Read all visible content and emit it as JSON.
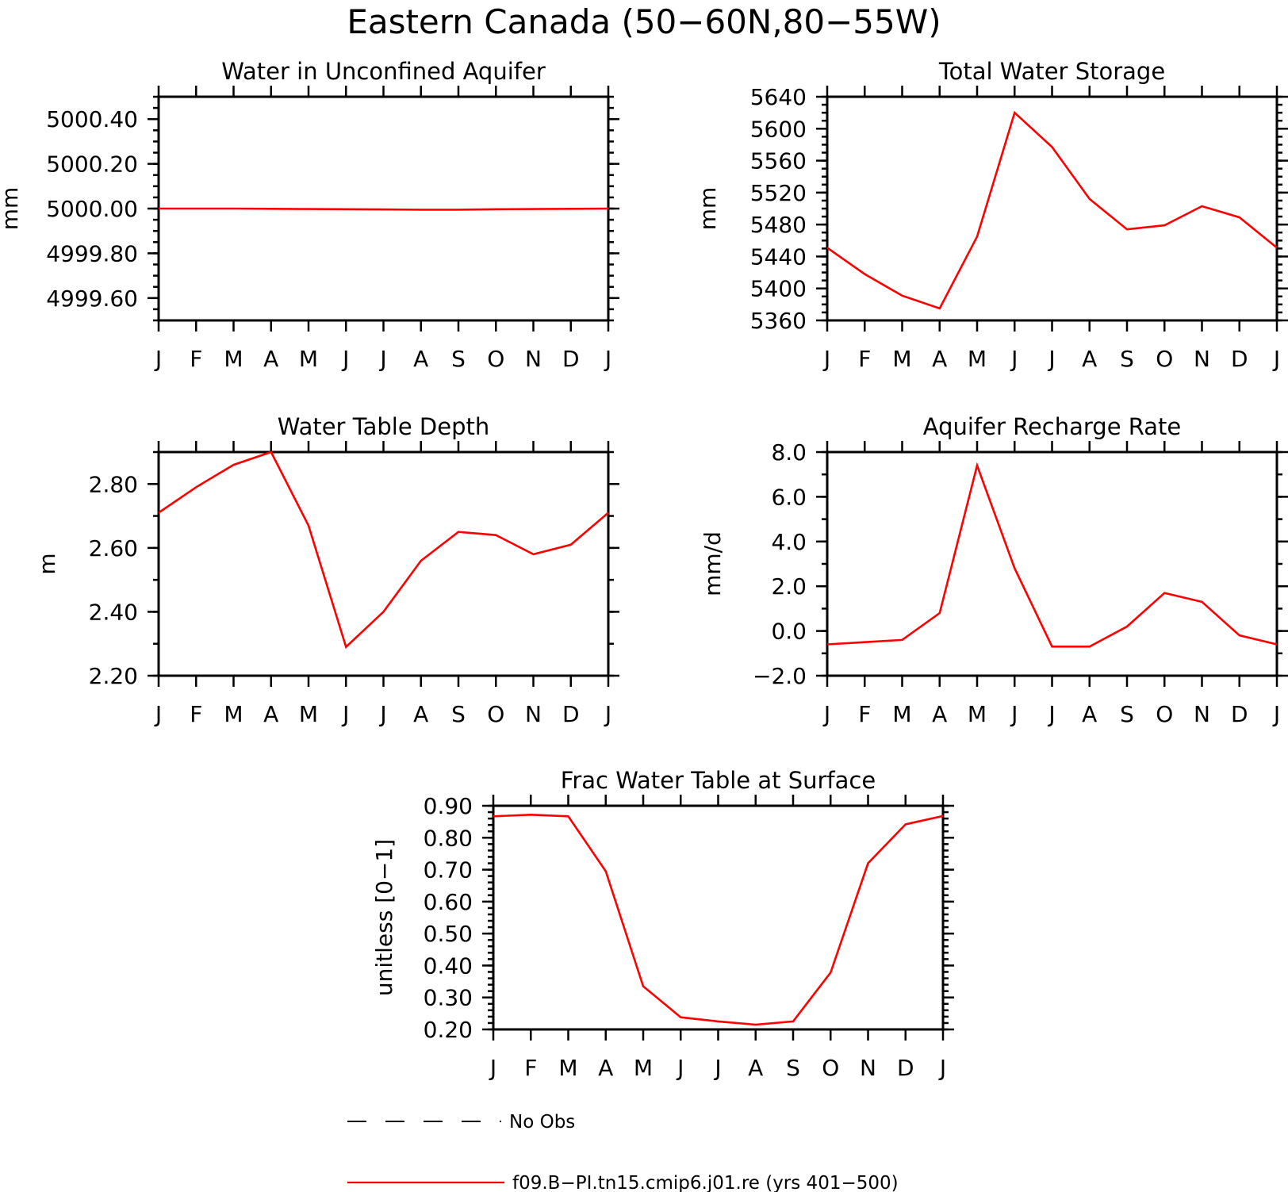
{
  "title": "Eastern Canada (50−60N,80−55W)",
  "months": [
    "J",
    "F",
    "M",
    "A",
    "M",
    "J",
    "J",
    "A",
    "S",
    "O",
    "N",
    "D",
    "J"
  ],
  "legend": {
    "entries": [
      {
        "label": "No Obs",
        "style": "dashed",
        "color": "#000000"
      },
      {
        "label": "f09.B−PI.tn15.cmip6.j01.re (yrs 401−500)",
        "style": "solid",
        "color": "#ff0000"
      }
    ]
  },
  "chart_data": [
    {
      "type": "line",
      "title": "Water in Unconfined Aquifer",
      "ylabel": "mm",
      "ylim": [
        4999.5,
        5000.5
      ],
      "yticks": [
        4999.6,
        4999.8,
        5000.0,
        5000.2,
        5000.4
      ],
      "ytick_labels": [
        "4999.60",
        "4999.80",
        "5000.00",
        "5000.20",
        "5000.40"
      ],
      "yminor_step": 0.05,
      "x": [
        "J",
        "F",
        "M",
        "A",
        "M",
        "J",
        "J",
        "A",
        "S",
        "O",
        "N",
        "D",
        "J"
      ],
      "series": [
        {
          "color": "#ff0000",
          "values": [
            5000.0,
            5000.0,
            5000.0,
            4999.999,
            4999.998,
            4999.997,
            4999.996,
            4999.995,
            4999.995,
            4999.997,
            4999.998,
            4999.999,
            5000.0
          ]
        }
      ]
    },
    {
      "type": "line",
      "title": "Total Water Storage",
      "ylabel": "mm",
      "ylim": [
        5360,
        5640
      ],
      "yticks": [
        5360,
        5400,
        5440,
        5480,
        5520,
        5560,
        5600,
        5640
      ],
      "ytick_labels": [
        "5360",
        "5400",
        "5440",
        "5480",
        "5520",
        "5560",
        "5600",
        "5640"
      ],
      "yminor_step": 10,
      "x": [
        "J",
        "F",
        "M",
        "A",
        "M",
        "J",
        "J",
        "A",
        "S",
        "O",
        "N",
        "D",
        "J"
      ],
      "series": [
        {
          "color": "#ff0000",
          "values": [
            5451,
            5418,
            5391,
            5375,
            5465,
            5620,
            5577,
            5512,
            5474,
            5479,
            5503,
            5489,
            5451
          ]
        }
      ]
    },
    {
      "type": "line",
      "title": "Water Table Depth",
      "ylabel": "m",
      "ylim": [
        2.2,
        2.9
      ],
      "yticks": [
        2.2,
        2.4,
        2.6,
        2.8
      ],
      "ytick_labels": [
        "2.20",
        "2.40",
        "2.60",
        "2.80"
      ],
      "yminor_step": 0.1,
      "x": [
        "J",
        "F",
        "M",
        "A",
        "M",
        "J",
        "J",
        "A",
        "S",
        "O",
        "N",
        "D",
        "J"
      ],
      "series": [
        {
          "color": "#ff0000",
          "values": [
            2.71,
            2.79,
            2.86,
            2.9,
            2.67,
            2.29,
            2.4,
            2.56,
            2.65,
            2.64,
            2.58,
            2.61,
            2.71
          ]
        }
      ]
    },
    {
      "type": "line",
      "title": "Aquifer Recharge Rate",
      "ylabel": "mm/d",
      "ylim": [
        -2.0,
        8.0
      ],
      "yticks": [
        -2.0,
        0.0,
        2.0,
        4.0,
        6.0,
        8.0
      ],
      "ytick_labels": [
        "−2.0",
        "0.0",
        "2.0",
        "4.0",
        "6.0",
        "8.0"
      ],
      "yminor_step": 1.0,
      "x": [
        "J",
        "F",
        "M",
        "A",
        "M",
        "J",
        "J",
        "A",
        "S",
        "O",
        "N",
        "D",
        "J"
      ],
      "series": [
        {
          "color": "#ff0000",
          "values": [
            -0.6,
            -0.5,
            -0.4,
            0.8,
            7.4,
            2.8,
            -0.7,
            -0.7,
            0.2,
            1.7,
            1.3,
            -0.2,
            -0.6
          ]
        }
      ]
    },
    {
      "type": "line",
      "title": "Frac Water Table at Surface",
      "ylabel": "unitless [0−1]",
      "ylim": [
        0.2,
        0.9
      ],
      "yticks": [
        0.2,
        0.3,
        0.4,
        0.5,
        0.6,
        0.7,
        0.8,
        0.9
      ],
      "ytick_labels": [
        "0.20",
        "0.30",
        "0.40",
        "0.50",
        "0.60",
        "0.70",
        "0.80",
        "0.90"
      ],
      "yminor_step": 0.02,
      "x": [
        "J",
        "F",
        "M",
        "A",
        "M",
        "J",
        "J",
        "A",
        "S",
        "O",
        "N",
        "D",
        "J"
      ],
      "series": [
        {
          "color": "#ff0000",
          "values": [
            0.867,
            0.872,
            0.867,
            0.695,
            0.335,
            0.238,
            0.225,
            0.215,
            0.225,
            0.378,
            0.72,
            0.842,
            0.868
          ]
        }
      ]
    }
  ]
}
